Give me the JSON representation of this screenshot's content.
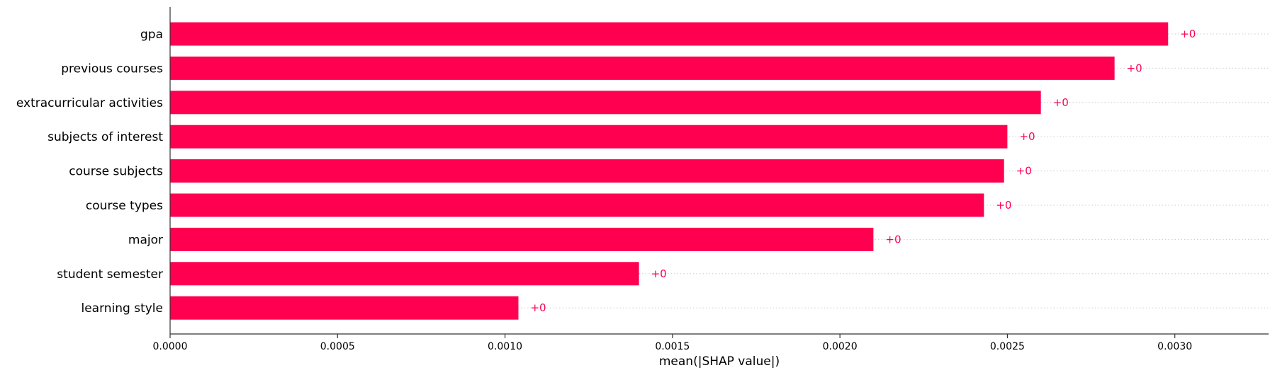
{
  "chart_data": {
    "type": "bar",
    "orientation": "horizontal",
    "categories": [
      "gpa",
      "previous courses",
      "extracurricular activities",
      "subjects of interest",
      "course subjects",
      "course types",
      "major",
      "student semester",
      "learning style"
    ],
    "values": [
      0.00298,
      0.00282,
      0.0026,
      0.0025,
      0.00249,
      0.00243,
      0.0021,
      0.0014,
      0.00104
    ],
    "data_labels": [
      "+0",
      "+0",
      "+0",
      "+0",
      "+0",
      "+0",
      "+0",
      "+0",
      "+0"
    ],
    "xlabel": "mean(|SHAP value|)",
    "ylabel": "",
    "xlim": [
      0,
      0.00328
    ],
    "xticks": [
      0,
      0.0005,
      0.001,
      0.0015,
      0.002,
      0.0025,
      0.003
    ],
    "xtick_labels": [
      "0.0000",
      "0.0005",
      "0.0010",
      "0.0015",
      "0.0020",
      "0.0025",
      "0.0030"
    ],
    "grid": "dotted horizontal guide lines per bar",
    "legend": "none",
    "colors": {
      "bar": "#ff0051",
      "data_label": "#ff0051",
      "axis": "#333333",
      "guide": "#cccccc"
    }
  }
}
